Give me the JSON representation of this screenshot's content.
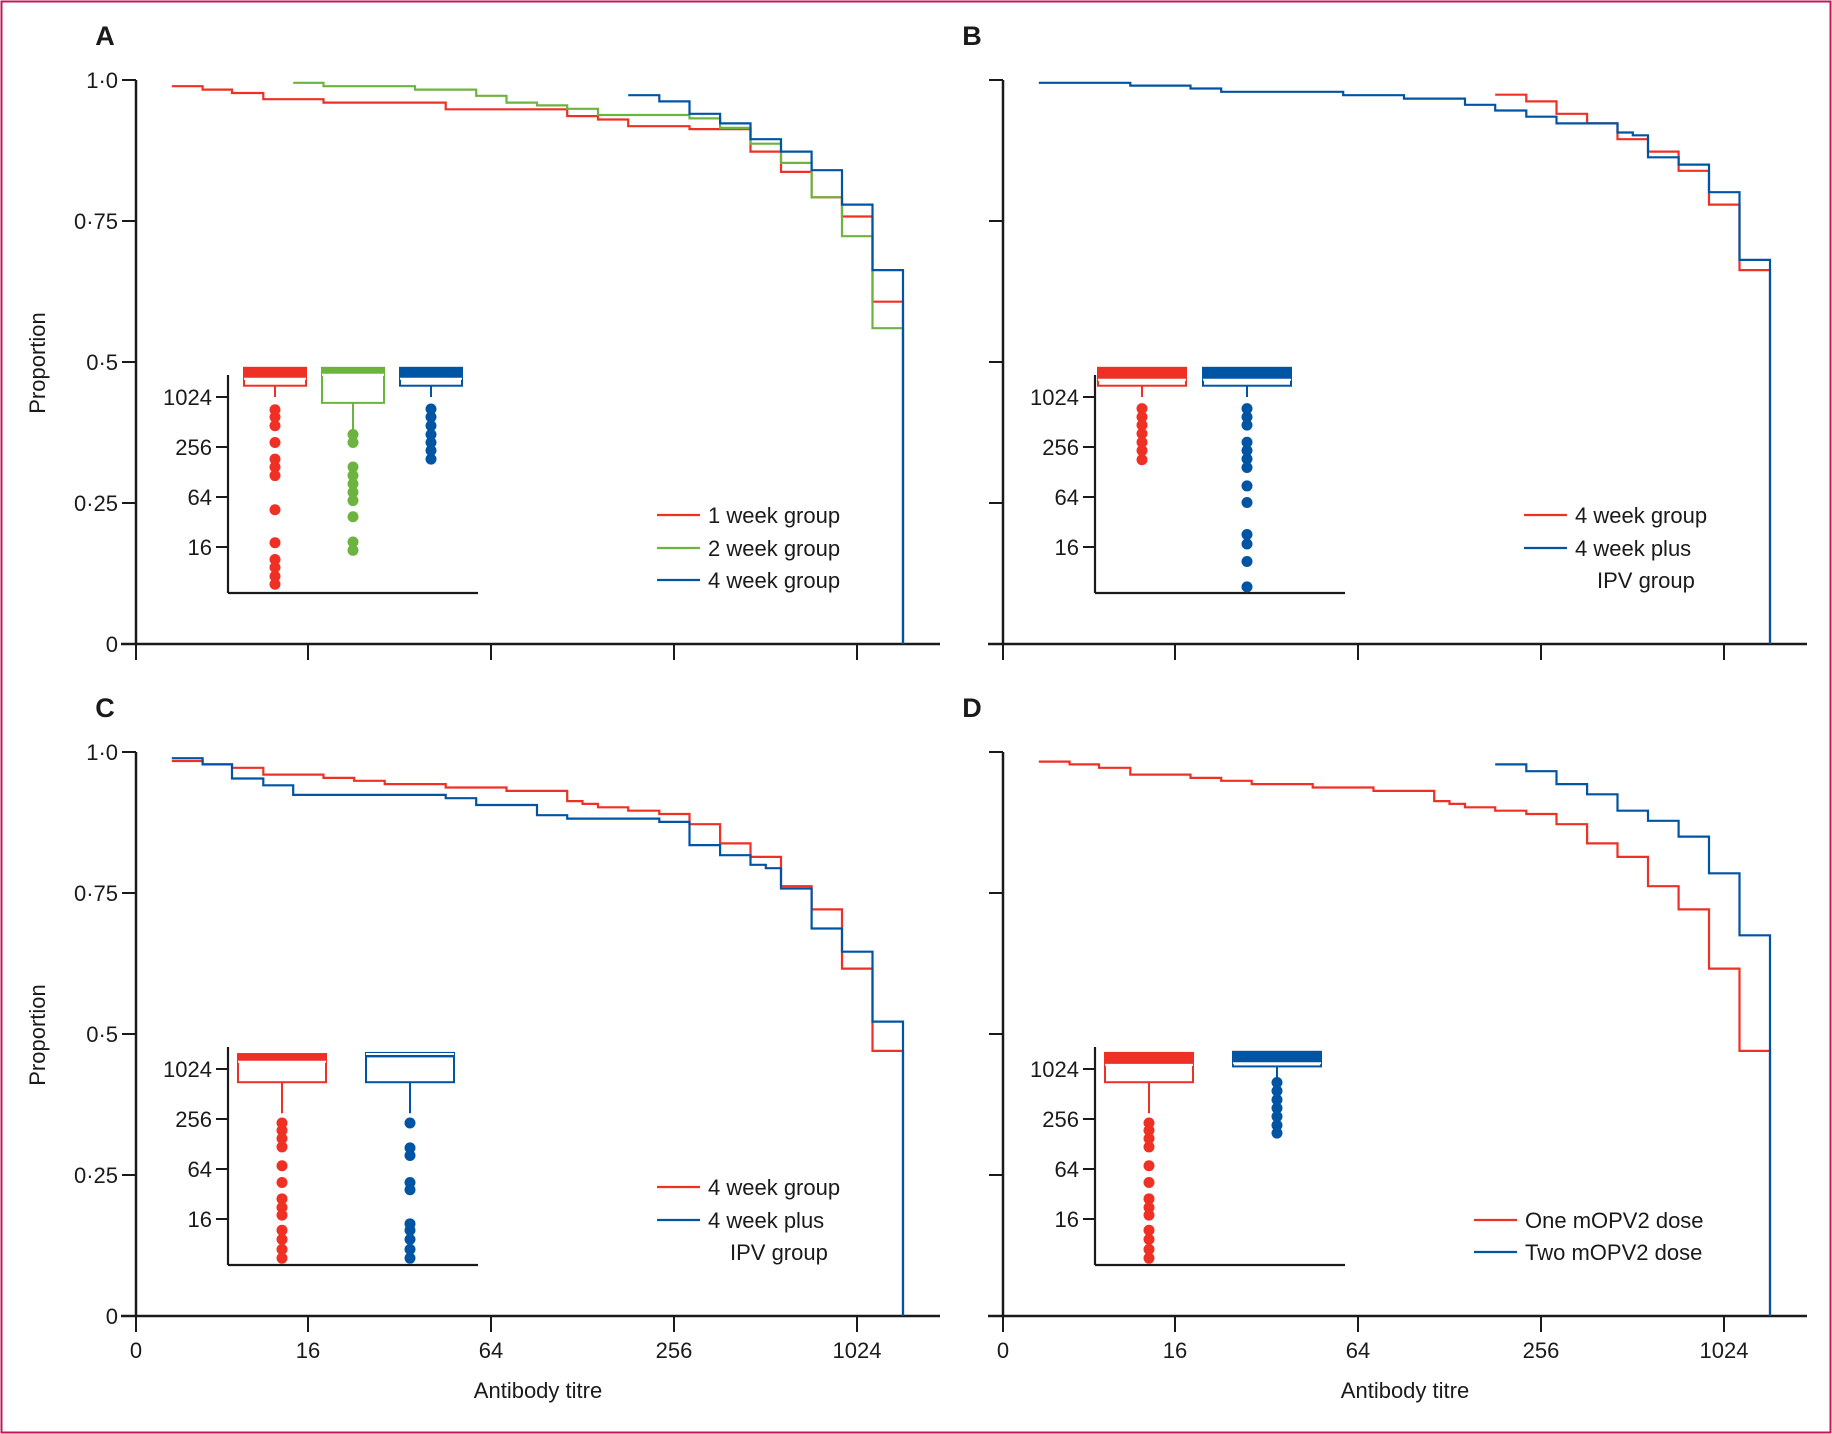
{
  "figure": {
    "border_color": "#c2185b",
    "colors": {
      "red": "#ee3124",
      "green": "#6db33f",
      "blue": "#0054a4",
      "axis": "#1a1a1a"
    }
  },
  "chart_data": [
    {
      "panel": "A",
      "type": "line",
      "step": true,
      "xlabel": "",
      "ylabel": "Proportion",
      "xscale": "log",
      "x_ticks": [
        "",
        "",
        "",
        "",
        ""
      ],
      "y_ticks": [
        "0",
        "0·25",
        "0·5",
        "0·75",
        "1·0"
      ],
      "ylim": [
        0,
        1
      ],
      "legend_position": "bottom-right",
      "series": [
        {
          "name": "1 week group",
          "color": "red",
          "points": [
            [
              5.7,
              0.989
            ],
            [
              7.2,
              0.983
            ],
            [
              9.0,
              0.977
            ],
            [
              11.4,
              0.966
            ],
            [
              18.0,
              0.96
            ],
            [
              45.4,
              0.948
            ],
            [
              114,
              0.936
            ],
            [
              144,
              0.93
            ],
            [
              181,
              0.918
            ],
            [
              288,
              0.913
            ],
            [
              457,
              0.873
            ],
            [
              576,
              0.837
            ],
            [
              726,
              0.792
            ],
            [
              914,
              0.758
            ],
            [
              1152,
              0.607
            ],
            [
              1451,
              0
            ]
          ]
        },
        {
          "name": "2 week group",
          "color": "green",
          "points": [
            [
              14.3,
              0.995
            ],
            [
              18.0,
              0.989
            ],
            [
              36,
              0.983
            ],
            [
              57.2,
              0.972
            ],
            [
              72,
              0.96
            ],
            [
              90.7,
              0.955
            ],
            [
              114,
              0.949
            ],
            [
              144,
              0.938
            ],
            [
              288,
              0.932
            ],
            [
              363,
              0.915
            ],
            [
              457,
              0.887
            ],
            [
              576,
              0.853
            ],
            [
              726,
              0.792
            ],
            [
              914,
              0.723
            ],
            [
              1152,
              0.56
            ],
            [
              1451,
              0
            ]
          ]
        },
        {
          "name": "4 week group",
          "color": "blue",
          "points": [
            [
              181,
              0.973
            ],
            [
              229,
              0.962
            ],
            [
              288,
              0.94
            ],
            [
              363,
              0.923
            ],
            [
              457,
              0.895
            ],
            [
              576,
              0.873
            ],
            [
              726,
              0.84
            ],
            [
              914,
              0.779
            ],
            [
              1152,
              0.663
            ],
            [
              1451,
              0
            ]
          ]
        }
      ],
      "inset": {
        "y_ticks": [
          "16",
          "64",
          "256",
          "1024"
        ],
        "boxes": [
          {
            "group": "1 week group",
            "color": "red",
            "q1": 1400,
            "median": 1700,
            "q3": 2300,
            "whisker_low": 1024,
            "outliers": [
              720,
              588,
              462,
              290,
              183,
              147,
              116,
              45,
              18,
              11.3,
              9.1,
              7.1,
              5.7
            ]
          },
          {
            "group": "2 week group",
            "color": "green",
            "q1": 870,
            "median": 1900,
            "q3": 2300,
            "whisker_low": 400,
            "outliers": [
              362,
              290,
              147,
              116,
              92,
              73,
              58,
              37,
              18.4,
              14.6
            ]
          },
          {
            "group": "4 week group",
            "color": "blue",
            "q1": 1400,
            "median": 1700,
            "q3": 2300,
            "whisker_low": 1024,
            "outliers": [
              734,
              588,
              462,
              362,
              290,
              232,
              183
            ]
          }
        ]
      }
    },
    {
      "panel": "B",
      "type": "line",
      "step": true,
      "xlabel": "",
      "ylabel": "",
      "xscale": "log",
      "x_ticks": [
        "",
        "",
        "",
        "",
        ""
      ],
      "y_ticks": [
        "",
        "",
        "",
        "",
        ""
      ],
      "ylim": [
        0,
        1
      ],
      "legend_position": "bottom-right",
      "series": [
        {
          "name": "4 week group",
          "color": "red",
          "points": [
            [
              181,
              0.974
            ],
            [
              229,
              0.962
            ],
            [
              288,
              0.94
            ],
            [
              363,
              0.923
            ],
            [
              457,
              0.895
            ],
            [
              576,
              0.873
            ],
            [
              726,
              0.839
            ],
            [
              914,
              0.779
            ],
            [
              1152,
              0.663
            ],
            [
              1451,
              0
            ]
          ]
        },
        {
          "name": "4 week plus IPV group",
          "color": "blue",
          "points": [
            [
              5.7,
              0.995
            ],
            [
              11.4,
              0.99
            ],
            [
              18.0,
              0.985
            ],
            [
              22.7,
              0.979
            ],
            [
              57.2,
              0.973
            ],
            [
              90.7,
              0.967
            ],
            [
              144,
              0.956
            ],
            [
              181,
              0.946
            ],
            [
              229,
              0.935
            ],
            [
              288,
              0.923
            ],
            [
              457,
              0.907
            ],
            [
              513,
              0.902
            ],
            [
              576,
              0.863
            ],
            [
              726,
              0.85
            ],
            [
              914,
              0.801
            ],
            [
              1152,
              0.681
            ],
            [
              1451,
              0
            ]
          ]
        }
      ],
      "inset": {
        "y_ticks": [
          "16",
          "64",
          "256",
          "1024"
        ],
        "boxes": [
          {
            "group": "4 week group",
            "color": "red",
            "q1": 1400,
            "median": 1650,
            "q3": 2300,
            "whisker_low": 1024,
            "outliers": [
              741,
              588,
              470,
              371,
              292,
              232,
              180
            ]
          },
          {
            "group": "4 week plus IPV group",
            "color": "blue",
            "q1": 1400,
            "median": 1650,
            "q3": 2300,
            "whisker_low": 1024,
            "outliers": [
              741,
              588,
              470,
              292,
              232,
              184,
              145,
              87,
              55,
              22.6,
              17.4,
              10.7,
              5.3
            ]
          }
        ]
      },
      "legend_labels": [
        "4 week group",
        "4 week plus",
        "IPV group"
      ]
    },
    {
      "panel": "C",
      "type": "line",
      "step": true,
      "xlabel": "Antibody titre",
      "ylabel": "Proportion",
      "xscale": "log",
      "x_ticks": [
        "0",
        "16",
        "64",
        "256",
        "1024"
      ],
      "y_ticks": [
        "0",
        "0·25",
        "0·5",
        "0·75",
        "1·0"
      ],
      "ylim": [
        0,
        1
      ],
      "legend_position": "bottom-right",
      "series": [
        {
          "name": "4 week group",
          "color": "red",
          "points": [
            [
              5.7,
              0.984
            ],
            [
              7.2,
              0.978
            ],
            [
              9.0,
              0.972
            ],
            [
              11.4,
              0.96
            ],
            [
              18.0,
              0.954
            ],
            [
              22.7,
              0.949
            ],
            [
              28.6,
              0.943
            ],
            [
              45.4,
              0.937
            ],
            [
              72,
              0.931
            ],
            [
              114,
              0.913
            ],
            [
              128,
              0.908
            ],
            [
              144,
              0.902
            ],
            [
              181,
              0.896
            ],
            [
              229,
              0.89
            ],
            [
              288,
              0.872
            ],
            [
              363,
              0.838
            ],
            [
              457,
              0.814
            ],
            [
              576,
              0.762
            ],
            [
              726,
              0.721
            ],
            [
              914,
              0.616
            ],
            [
              1152,
              0.47
            ],
            [
              1451,
              0
            ]
          ]
        },
        {
          "name": "4 week plus IPV group",
          "color": "blue",
          "points": [
            [
              5.7,
              0.989
            ],
            [
              7.2,
              0.978
            ],
            [
              9.0,
              0.953
            ],
            [
              11.4,
              0.941
            ],
            [
              14.3,
              0.924
            ],
            [
              45.4,
              0.918
            ],
            [
              57.2,
              0.906
            ],
            [
              90.7,
              0.888
            ],
            [
              114,
              0.882
            ],
            [
              229,
              0.876
            ],
            [
              288,
              0.835
            ],
            [
              363,
              0.817
            ],
            [
              457,
              0.8
            ],
            [
              513,
              0.794
            ],
            [
              576,
              0.758
            ],
            [
              726,
              0.687
            ],
            [
              914,
              0.646
            ],
            [
              1152,
              0.522
            ],
            [
              1451,
              0
            ]
          ]
        }
      ],
      "inset": {
        "y_ticks": [
          "16",
          "64",
          "256",
          "1024"
        ],
        "boxes": [
          {
            "group": "4 week group",
            "color": "red",
            "q1": 710,
            "median": 1250,
            "q3": 1550,
            "whisker_low": 300,
            "outliers": [
              229,
              187,
              149,
              118,
              70,
              44,
              28,
              22,
              17.8,
              11.7,
              9.1,
              6.9,
              5.4
            ]
          },
          {
            "group": "4 week plus IPV group",
            "color": "blue",
            "q1": 710,
            "median": 1550,
            "q3": 1600,
            "whisker_low": 300,
            "outliers": [
              229,
              115,
              93,
              44,
              36,
              14,
              11.7,
              9.1,
              6.9,
              5.4
            ]
          }
        ]
      },
      "legend_labels": [
        "4 week group",
        "4 week plus",
        "IPV group"
      ]
    },
    {
      "panel": "D",
      "type": "line",
      "step": true,
      "xlabel": "Antibody titre",
      "ylabel": "",
      "xscale": "log",
      "x_ticks": [
        "0",
        "16",
        "64",
        "256",
        "1024"
      ],
      "y_ticks": [
        "",
        "",
        "",
        "",
        ""
      ],
      "ylim": [
        0,
        1
      ],
      "legend_position": "bottom-right",
      "series": [
        {
          "name": "One mOPV2 dose",
          "color": "red",
          "points": [
            [
              5.7,
              0.983
            ],
            [
              7.2,
              0.978
            ],
            [
              9.0,
              0.972
            ],
            [
              11.4,
              0.96
            ],
            [
              18.0,
              0.954
            ],
            [
              22.7,
              0.949
            ],
            [
              28.6,
              0.943
            ],
            [
              45.4,
              0.937
            ],
            [
              72,
              0.931
            ],
            [
              114,
              0.913
            ],
            [
              128,
              0.908
            ],
            [
              144,
              0.902
            ],
            [
              181,
              0.896
            ],
            [
              229,
              0.89
            ],
            [
              288,
              0.872
            ],
            [
              363,
              0.838
            ],
            [
              457,
              0.814
            ],
            [
              576,
              0.762
            ],
            [
              726,
              0.721
            ],
            [
              914,
              0.616
            ],
            [
              1152,
              0.47
            ],
            [
              1451,
              0
            ]
          ]
        },
        {
          "name": "Two mOPV2 dose",
          "color": "blue",
          "points": [
            [
              181,
              0.978
            ],
            [
              229,
              0.966
            ],
            [
              288,
              0.943
            ],
            [
              363,
              0.925
            ],
            [
              457,
              0.896
            ],
            [
              576,
              0.878
            ],
            [
              726,
              0.85
            ],
            [
              914,
              0.785
            ],
            [
              1152,
              0.675
            ],
            [
              1451,
              0
            ]
          ]
        }
      ],
      "inset": {
        "y_ticks": [
          "16",
          "64",
          "256",
          "1024"
        ],
        "boxes": [
          {
            "group": "One mOPV2 dose",
            "color": "red",
            "q1": 710,
            "median": 1150,
            "q3": 1600,
            "whisker_low": 300,
            "outliers": [
              229,
              187,
              149,
              118,
              70,
              44,
              28,
              22,
              17.8,
              11.7,
              9.1,
              6.9,
              5.4
            ]
          },
          {
            "group": "Two mOPV2 dose",
            "color": "blue",
            "q1": 1100,
            "median": 1200,
            "q3": 1650,
            "whisker_low": 760,
            "outliers": [
              705,
              559,
              437,
              346,
              274,
              215,
              173
            ]
          }
        ]
      },
      "legend_labels": [
        "One mOPV2 dose",
        "Two mOPV2 dose"
      ]
    }
  ],
  "panels": {
    "A": {
      "letter": "A",
      "ylabel": "Proportion",
      "legend": [
        "1 week group",
        "2 week group",
        "4 week group"
      ]
    },
    "B": {
      "letter": "B",
      "legend": [
        "4 week group",
        "4 week plus",
        "IPV group"
      ]
    },
    "C": {
      "letter": "C",
      "ylabel": "Proportion",
      "xlabel": "Antibody titre",
      "legend": [
        "4 week group",
        "4 week plus",
        "IPV group"
      ]
    },
    "D": {
      "letter": "D",
      "xlabel": "Antibody titre",
      "legend": [
        "One mOPV2 dose",
        "Two mOPV2 dose"
      ]
    }
  }
}
